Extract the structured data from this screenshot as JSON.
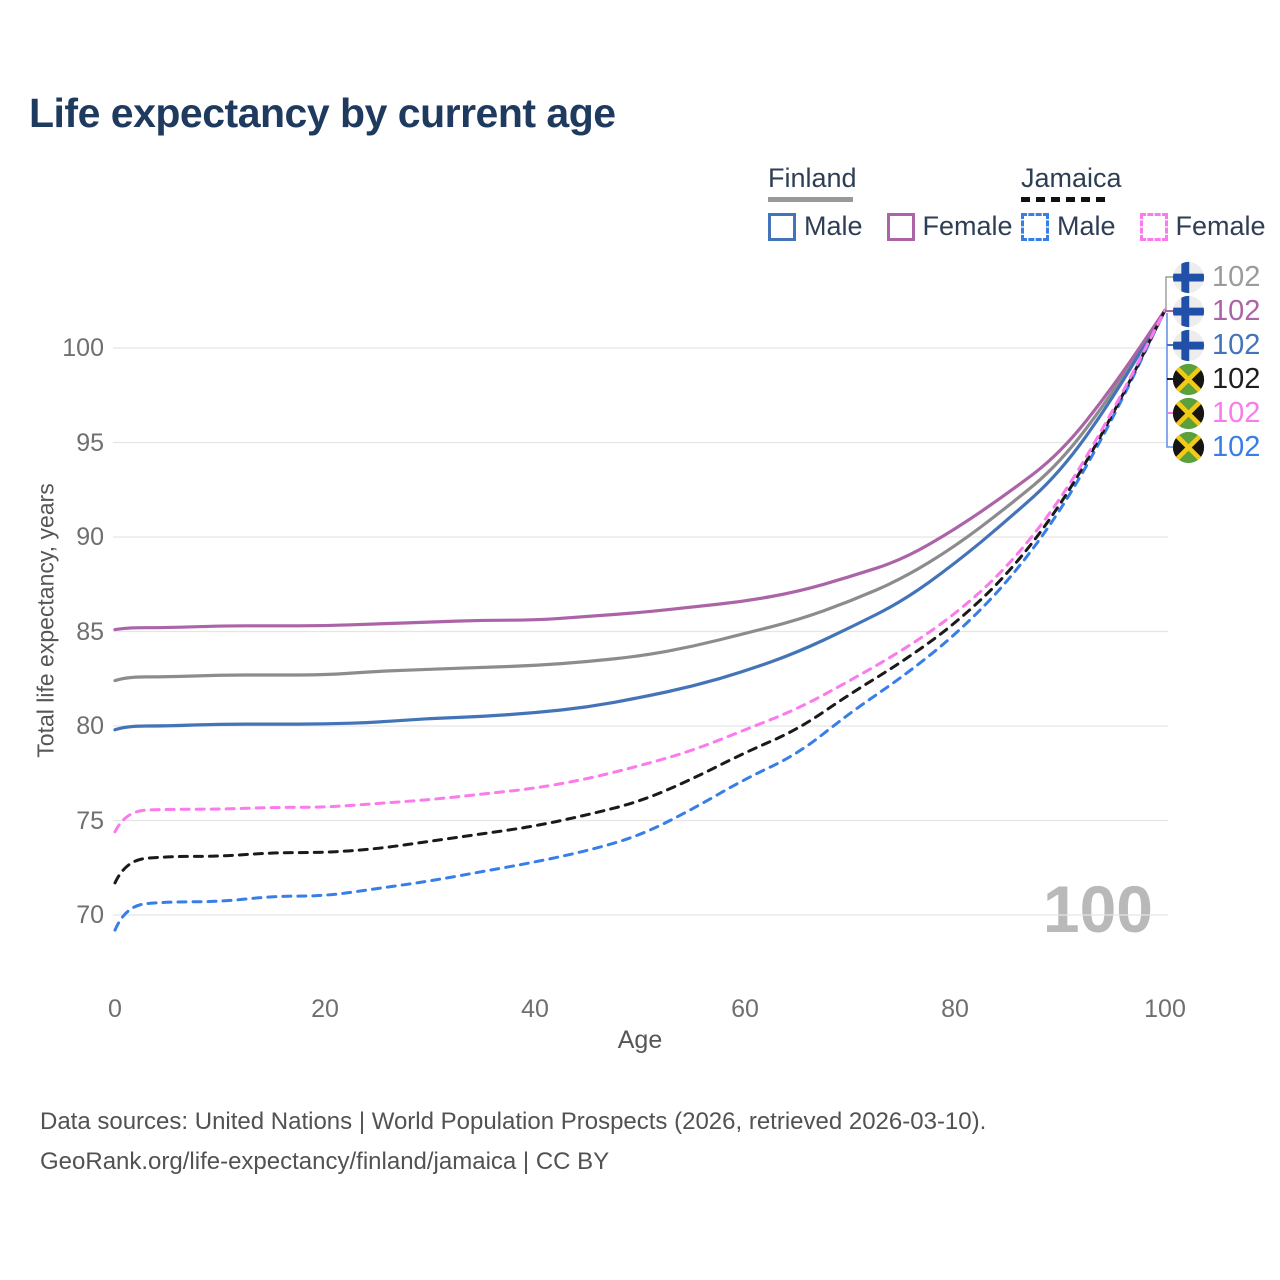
{
  "title": "Life expectancy by current age",
  "legend": {
    "groups": [
      {
        "label": "Finland",
        "underline_style": "solid-gray",
        "items": [
          {
            "label": "Male"
          },
          {
            "label": "Female"
          }
        ]
      },
      {
        "label": "Jamaica",
        "underline_style": "dashed-black",
        "items": [
          {
            "label": "Male"
          },
          {
            "label": "Female"
          }
        ]
      }
    ]
  },
  "y_axis": {
    "title": "Total life expectancy, years",
    "ticks": [
      100,
      95,
      90,
      85,
      80,
      75,
      70
    ]
  },
  "x_axis": {
    "title": "Age",
    "ticks": [
      0,
      20,
      40,
      60,
      80,
      100
    ]
  },
  "watermark": {
    "text": "100"
  },
  "end_labels": [
    {
      "series": "Finland (both sexes)",
      "flag": "finland",
      "value": "102",
      "color": "#9b9b9b"
    },
    {
      "series": "Finland Female",
      "flag": "finland",
      "value": "102",
      "color": "#ab64a7"
    },
    {
      "series": "Finland Male",
      "flag": "finland",
      "value": "102",
      "color": "#4474b8"
    },
    {
      "series": "Jamaica (both sexes)",
      "flag": "jamaica",
      "value": "102",
      "color": "#1e1e1e"
    },
    {
      "series": "Jamaica Female",
      "flag": "jamaica",
      "value": "102",
      "color": "#fb7aec"
    },
    {
      "series": "Jamaica Male",
      "flag": "jamaica",
      "value": "102",
      "color": "#377ee9"
    }
  ],
  "footer": {
    "line1": "Data sources: United Nations | World Population Prospects (2026, retrieved 2026-03-10).",
    "line2": "GeoRank.org/life-expectancy/finland/jamaica | CC BY"
  },
  "chart_data": {
    "type": "line",
    "title": "Life expectancy by current age",
    "xlabel": "Age",
    "ylabel": "Total life expectancy, years",
    "xlim": [
      0,
      100
    ],
    "ylim": [
      68,
      104
    ],
    "x_ticks": [
      0,
      20,
      40,
      60,
      80,
      100
    ],
    "y_ticks": [
      70,
      75,
      80,
      85,
      90,
      95,
      100
    ],
    "grid": "horizontal-only",
    "legend_position": "top-right",
    "x": [
      0,
      1,
      5,
      10,
      15,
      20,
      25,
      30,
      35,
      40,
      45,
      50,
      55,
      60,
      65,
      70,
      75,
      80,
      85,
      90,
      95,
      100
    ],
    "series": [
      {
        "name": "Finland Female",
        "country": "Finland",
        "sex": "Female",
        "style": "solid",
        "color": "#ab64a7",
        "values": [
          85.1,
          85.2,
          85.2,
          85.3,
          85.3,
          85.3,
          85.4,
          85.5,
          85.6,
          85.6,
          85.8,
          86.0,
          86.3,
          86.6,
          87.1,
          87.9,
          88.8,
          90.4,
          92.3,
          94.4,
          97.9,
          102
        ]
      },
      {
        "name": "Finland (both sexes)",
        "country": "Finland",
        "sex": "Both",
        "style": "solid",
        "color": "#8c8c8c",
        "values": [
          82.4,
          82.6,
          82.6,
          82.7,
          82.7,
          82.7,
          82.9,
          83.0,
          83.1,
          83.2,
          83.4,
          83.7,
          84.2,
          84.9,
          85.6,
          86.6,
          87.8,
          89.5,
          91.6,
          93.9,
          97.6,
          102
        ]
      },
      {
        "name": "Finland Male",
        "country": "Finland",
        "sex": "Male",
        "style": "solid",
        "color": "#4474b8",
        "values": [
          79.8,
          80.0,
          80.0,
          80.1,
          80.1,
          80.1,
          80.2,
          80.4,
          80.5,
          80.7,
          81.0,
          81.5,
          82.1,
          82.9,
          83.9,
          85.2,
          86.6,
          88.6,
          90.9,
          93.4,
          97.3,
          102
        ]
      },
      {
        "name": "Jamaica Female",
        "country": "Jamaica",
        "sex": "Female",
        "style": "dashed",
        "color": "#fb7aec",
        "values": [
          74.4,
          75.5,
          75.6,
          75.6,
          75.7,
          75.7,
          75.9,
          76.1,
          76.4,
          76.7,
          77.2,
          77.9,
          78.7,
          79.8,
          80.9,
          82.4,
          84.0,
          85.9,
          88.4,
          91.9,
          96.6,
          102
        ]
      },
      {
        "name": "Jamaica (both sexes)",
        "country": "Jamaica",
        "sex": "Both",
        "style": "dashed",
        "color": "#1a1a1a",
        "values": [
          71.7,
          72.9,
          73.1,
          73.1,
          73.3,
          73.3,
          73.5,
          73.9,
          74.3,
          74.7,
          75.3,
          76.0,
          77.2,
          78.6,
          79.8,
          81.7,
          83.4,
          85.4,
          88.0,
          91.6,
          96.4,
          102
        ]
      },
      {
        "name": "Jamaica Male",
        "country": "Jamaica",
        "sex": "Male",
        "style": "dashed",
        "color": "#377ee9",
        "values": [
          69.2,
          70.5,
          70.7,
          70.7,
          71.0,
          71.0,
          71.4,
          71.8,
          72.3,
          72.8,
          73.4,
          74.2,
          75.6,
          77.2,
          78.5,
          80.7,
          82.6,
          84.8,
          87.6,
          91.3,
          96.2,
          102
        ]
      }
    ],
    "end_value_labels": [
      "102",
      "102",
      "102",
      "102",
      "102",
      "102"
    ],
    "annotations": [
      {
        "text": "100",
        "role": "age-watermark",
        "position": "bottom-right"
      }
    ]
  }
}
